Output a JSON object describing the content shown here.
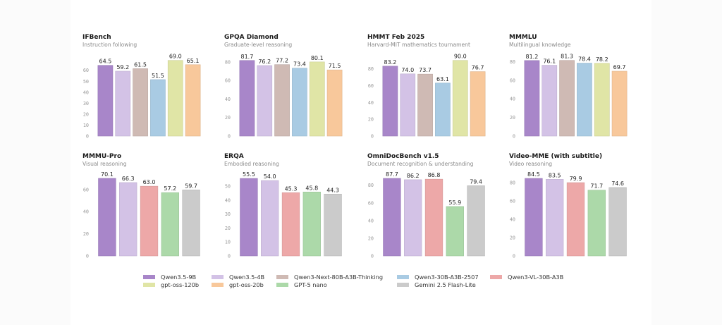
{
  "models": [
    {
      "id": "qwen35_9b",
      "name": "Qwen3.5-9B",
      "color": "#a886c9"
    },
    {
      "id": "qwen35_4b",
      "name": "Qwen3.5-4B",
      "color": "#d3c2e6"
    },
    {
      "id": "qwen3_next_80b",
      "name": "Qwen3-Next-80B-A3B-Thinking",
      "color": "#cfbab4"
    },
    {
      "id": "qwen3_30b",
      "name": "Qwen3-30B-A3B-2507",
      "color": "#a9cbe3"
    },
    {
      "id": "qwen3_vl_30b",
      "name": "Qwen3-VL-30B-A3B",
      "color": "#eda8a8"
    },
    {
      "id": "gpt_oss_120b",
      "name": "gpt-oss-120b",
      "color": "#e0e5a6"
    },
    {
      "id": "gpt_oss_20b",
      "name": "gpt-oss-20b",
      "color": "#f8c89b"
    },
    {
      "id": "gpt5_nano",
      "name": "GPT-5 nano",
      "color": "#acd9a9"
    },
    {
      "id": "gemini_25_flash_lite",
      "name": "Gemini 2.5 Flash-Lite",
      "color": "#cbcbcb"
    }
  ],
  "legend": {
    "rows": [
      [
        "Qwen3.5-9B",
        "Qwen3.5-4B",
        "Qwen3-Next-80B-A3B-Thinking",
        "Qwen3-30B-A3B-2507",
        "Qwen3-VL-30B-A3B"
      ],
      [
        "gpt-oss-120b",
        "gpt-oss-20b",
        "GPT-5 nano",
        "Gemini 2.5 Flash-Lite"
      ]
    ]
  },
  "chart_data": [
    {
      "type": "bar",
      "title": "IFBench",
      "subtitle": "Instruction following",
      "categories": [
        "Qwen3.5-9B",
        "Qwen3.5-4B",
        "Qwen3-Next-80B-A3B-Thinking",
        "Qwen3-30B-A3B-2507",
        "gpt-oss-120b",
        "gpt-oss-20b"
      ],
      "values": [
        64.5,
        59.2,
        61.5,
        51.5,
        69.0,
        65.1
      ],
      "yticks": [
        0,
        10,
        20,
        30,
        40,
        50,
        60
      ],
      "ylim": [
        0,
        75.9
      ],
      "grid": false
    },
    {
      "type": "bar",
      "title": "GPQA Diamond",
      "subtitle": "Graduate-level reasoning",
      "categories": [
        "Qwen3.5-9B",
        "Qwen3.5-4B",
        "Qwen3-Next-80B-A3B-Thinking",
        "Qwen3-30B-A3B-2507",
        "gpt-oss-120b",
        "gpt-oss-20b"
      ],
      "values": [
        81.7,
        76.2,
        77.2,
        73.4,
        80.1,
        71.5
      ],
      "yticks": [
        0,
        20,
        40,
        60,
        80
      ],
      "ylim": [
        0,
        89.9
      ],
      "grid": false
    },
    {
      "type": "bar",
      "title": "HMMT Feb 2025",
      "subtitle": "Harvard-MIT mathematics tournament",
      "categories": [
        "Qwen3.5-9B",
        "Qwen3.5-4B",
        "Qwen3-Next-80B-A3B-Thinking",
        "Qwen3-30B-A3B-2507",
        "gpt-oss-120b",
        "gpt-oss-20b"
      ],
      "values": [
        83.2,
        74.0,
        73.7,
        63.1,
        90.0,
        76.7
      ],
      "yticks": [
        0,
        20,
        40,
        60,
        80
      ],
      "ylim": [
        0,
        99
      ],
      "grid": false
    },
    {
      "type": "bar",
      "title": "MMMLU",
      "subtitle": "Multilingual knowledge",
      "categories": [
        "Qwen3.5-9B",
        "Qwen3.5-4B",
        "Qwen3-Next-80B-A3B-Thinking",
        "Qwen3-30B-A3B-2507",
        "gpt-oss-120b",
        "gpt-oss-20b"
      ],
      "values": [
        81.2,
        76.1,
        81.3,
        78.4,
        78.2,
        69.7
      ],
      "yticks": [
        0,
        20,
        40,
        60,
        80
      ],
      "ylim": [
        0,
        89.4
      ],
      "grid": false
    },
    {
      "type": "bar",
      "title": "MMMU-Pro",
      "subtitle": "Visual reasoning",
      "categories": [
        "Qwen3.5-9B",
        "Qwen3.5-4B",
        "Qwen3-VL-30B-A3B",
        "GPT-5 nano",
        "Gemini 2.5 Flash-Lite"
      ],
      "values": [
        70.1,
        66.3,
        63.0,
        57.2,
        59.7
      ],
      "yticks": [
        0,
        20,
        40,
        60
      ],
      "ylim": [
        0,
        77.1
      ],
      "grid": false
    },
    {
      "type": "bar",
      "title": "ERQA",
      "subtitle": "Embodied reasoning",
      "categories": [
        "Qwen3.5-9B",
        "Qwen3.5-4B",
        "Qwen3-VL-30B-A3B",
        "GPT-5 nano",
        "Gemini 2.5 Flash-Lite"
      ],
      "values": [
        55.5,
        54.0,
        45.3,
        45.8,
        44.3
      ],
      "yticks": [
        0,
        10,
        20,
        30,
        40,
        50
      ],
      "ylim": [
        0,
        61.1
      ],
      "grid": false
    },
    {
      "type": "bar",
      "title": "OmniDocBench v1.5",
      "subtitle": "Document recognition & understanding",
      "categories": [
        "Qwen3.5-9B",
        "Qwen3.5-4B",
        "Qwen3-VL-30B-A3B",
        "GPT-5 nano",
        "Gemini 2.5 Flash-Lite"
      ],
      "values": [
        87.7,
        86.2,
        86.8,
        55.9,
        79.4
      ],
      "yticks": [
        0,
        20,
        40,
        60,
        80
      ],
      "ylim": [
        0,
        96.5
      ],
      "grid": false
    },
    {
      "type": "bar",
      "title": "Video-MME (with subtitle)",
      "subtitle": "Video reasoning",
      "categories": [
        "Qwen3.5-9B",
        "Qwen3.5-4B",
        "Qwen3-VL-30B-A3B",
        "GPT-5 nano",
        "Gemini 2.5 Flash-Lite"
      ],
      "values": [
        84.5,
        83.5,
        79.9,
        71.7,
        74.6
      ],
      "yticks": [
        0,
        20,
        40,
        60,
        80
      ],
      "ylim": [
        0,
        93.0
      ],
      "grid": false
    }
  ]
}
